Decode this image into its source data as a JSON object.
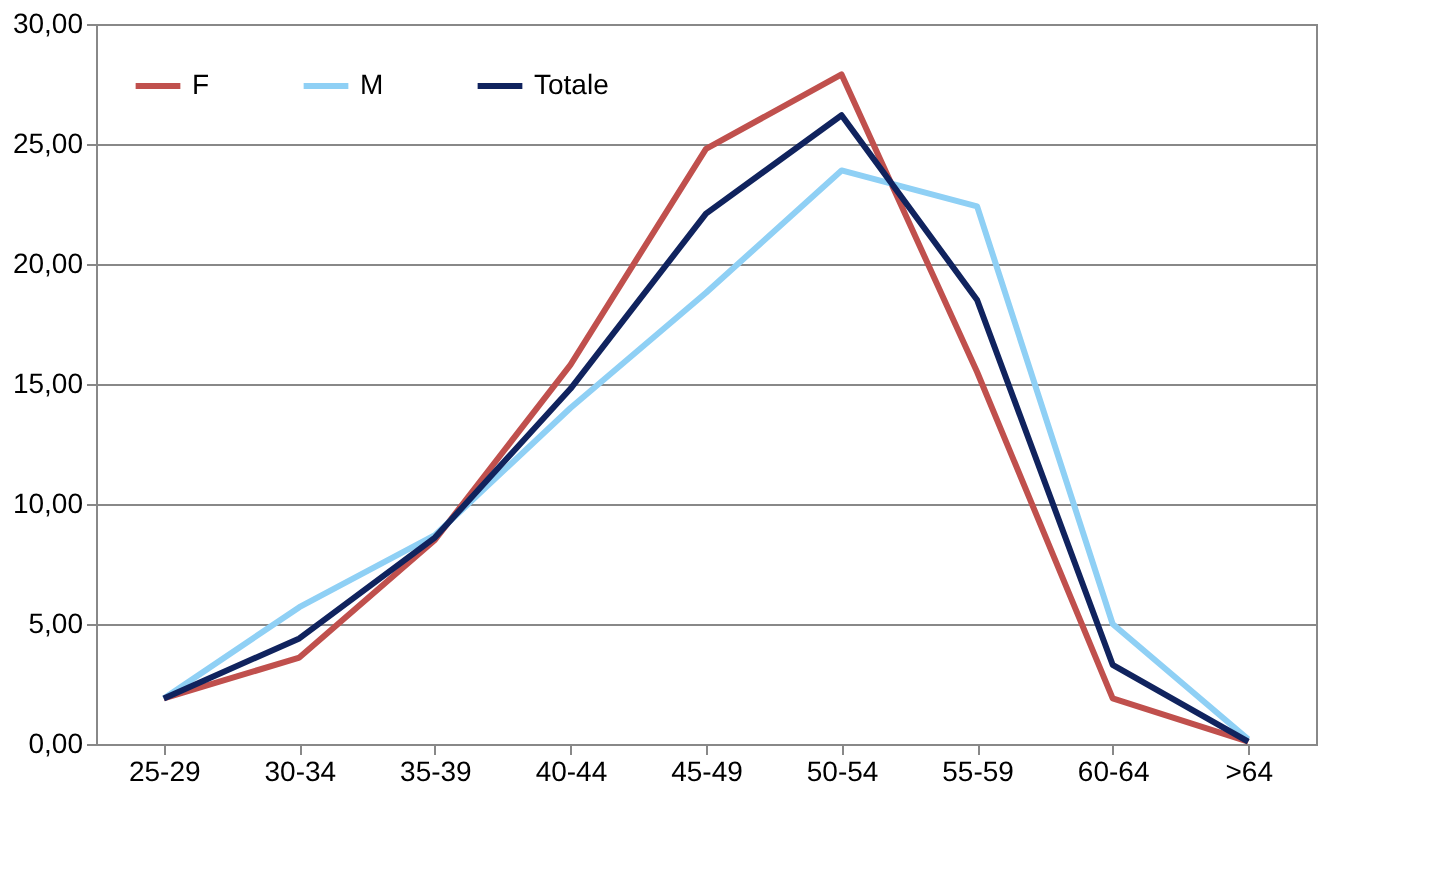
{
  "chart_data": {
    "type": "line",
    "categories": [
      "25-29",
      "30-34",
      "35-39",
      "40-44",
      "45-49",
      "50-54",
      "55-59",
      "60-64",
      ">64"
    ],
    "series": [
      {
        "name": "F",
        "color": "#c0504d",
        "values": [
          1.9,
          3.6,
          8.5,
          15.8,
          24.8,
          27.9,
          15.5,
          1.9,
          0.1
        ]
      },
      {
        "name": "M",
        "color": "#8fd0f5",
        "values": [
          1.9,
          5.7,
          8.7,
          14.0,
          18.8,
          23.9,
          22.4,
          5.0,
          0.2
        ]
      },
      {
        "name": "Totale",
        "color": "#10235e",
        "values": [
          1.9,
          4.4,
          8.6,
          14.8,
          22.1,
          26.2,
          18.5,
          3.3,
          0.1
        ]
      }
    ],
    "ylim": [
      0,
      30
    ],
    "yticks": [
      {
        "value": 0,
        "label": "0,00"
      },
      {
        "value": 5,
        "label": "5,00"
      },
      {
        "value": 10,
        "label": "10,00"
      },
      {
        "value": 15,
        "label": "15,00"
      },
      {
        "value": 20,
        "label": "20,00"
      },
      {
        "value": 25,
        "label": "25,00"
      },
      {
        "value": 30,
        "label": "30,00"
      }
    ],
    "grid": "y",
    "legend": "top left",
    "marker": "none",
    "line_style": "solid"
  }
}
